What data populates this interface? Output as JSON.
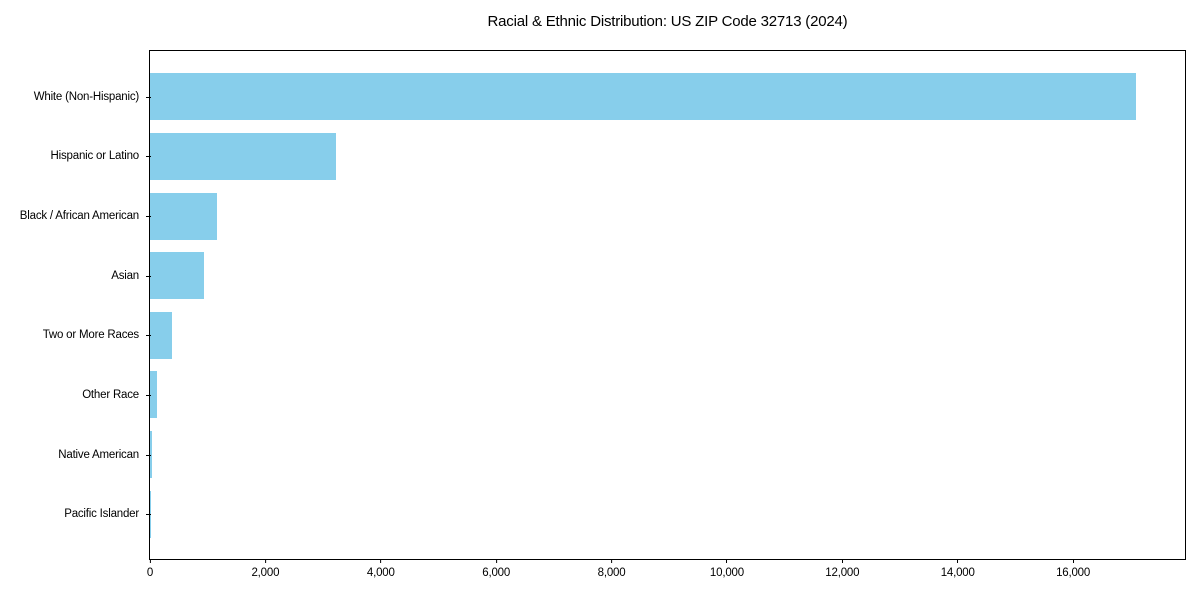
{
  "chart_data": {
    "type": "bar",
    "orientation": "horizontal",
    "title": "Racial & Ethnic Distribution: US ZIP Code 32713 (2024)",
    "categories": [
      "White (Non-Hispanic)",
      "Hispanic or Latino",
      "Black / African American",
      "Asian",
      "Two or More Races",
      "Other Race",
      "Native American",
      "Pacific Islander"
    ],
    "values": [
      17090,
      3230,
      1160,
      930,
      380,
      120,
      35,
      8
    ],
    "xlabel": "",
    "ylabel": "",
    "xlim": [
      0,
      17940
    ],
    "x_ticks": [
      0,
      2000,
      4000,
      6000,
      8000,
      10000,
      12000,
      14000,
      16000
    ],
    "x_tick_labels": [
      "0",
      "2,000",
      "4,000",
      "6,000",
      "8,000",
      "10,000",
      "12,000",
      "14,000",
      "16,000"
    ],
    "bar_color": "#87CEEB",
    "axis_color": "#000000",
    "text_color": "#000000",
    "background": "#FFFFFF",
    "grid": false,
    "legend": false,
    "bar_height_ratio": 0.8
  }
}
